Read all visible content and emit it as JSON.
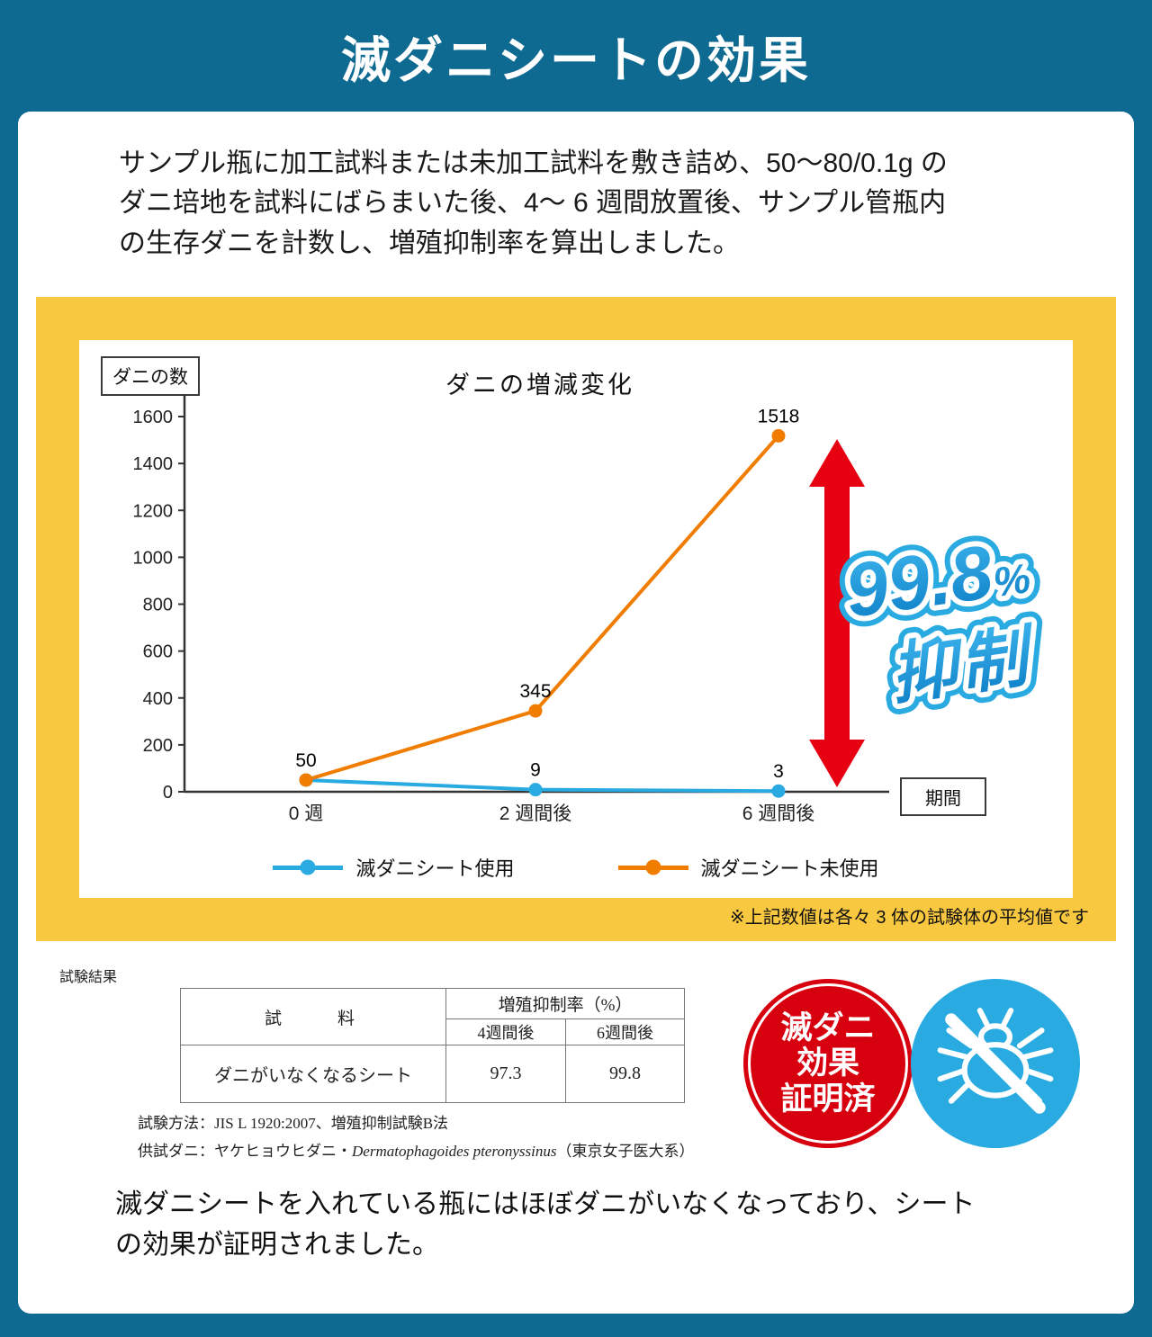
{
  "theme": {
    "background": "#0e6a91",
    "frame_yellow": "#f9c841",
    "line_blue": "#29abe2",
    "line_orange": "#f07c00",
    "arrow_red": "#e60012",
    "badge_red": "#d7000f",
    "badge_blue": "#29abe2"
  },
  "header": {
    "title": "滅ダニシートの効果"
  },
  "intro": {
    "lines": [
      "サンプル瓶に加工試料または未加工試料を敷き詰め、50〜80/0.1g の",
      "ダニ培地を試料にばらまいた後、4〜 6 週間放置後、サンプル管瓶内",
      "の生存ダニを計数し、増殖抑制率を算出しました。"
    ]
  },
  "chart_data": {
    "type": "line",
    "title": "ダニの増減変化",
    "ylabel": "ダニの数",
    "xlabel": "期間",
    "categories": [
      "0 週",
      "2 週間後",
      "6 週間後"
    ],
    "series": [
      {
        "name": "滅ダニシート使用",
        "color": "#29abe2",
        "values": [
          50,
          9,
          3
        ]
      },
      {
        "name": "滅ダニシート未使用",
        "color": "#f07c00",
        "values": [
          50,
          345,
          1518
        ]
      }
    ],
    "ylim": [
      0,
      1600
    ],
    "y_ticks": [
      0,
      200,
      400,
      600,
      800,
      1000,
      1200,
      1400,
      1600
    ],
    "grid": false,
    "legend_position": "bottom",
    "annotation": {
      "value": "99.8",
      "unit": "%",
      "label": "抑制"
    },
    "note": "※上記数値は各々 3 体の試験体の平均値です"
  },
  "results": {
    "heading": "試験結果",
    "table": {
      "sample_header": "試　　料",
      "rate_header": "増殖抑制率（%）",
      "week4_header": "4週間後",
      "week6_header": "6週間後",
      "rows": [
        {
          "sample": "ダニがいなくなるシート",
          "week4": "97.3",
          "week6": "99.8"
        }
      ]
    },
    "method": "試験方法：JIS L 1920:2007、増殖抑制試験B法",
    "mite_prefix": "供試ダニ：ヤケヒョウヒダニ・",
    "mite_species": "Dermatophagoides pteronyssinus",
    "mite_suffix": "（東京女子医大系）"
  },
  "badges": {
    "red_lines": [
      "滅ダニ",
      "効果",
      "証明済"
    ]
  },
  "conclusion": {
    "lines": [
      "滅ダニシートを入れている瓶にはほぼダニがいなくなっており、シート",
      "の効果が証明されました。"
    ]
  }
}
